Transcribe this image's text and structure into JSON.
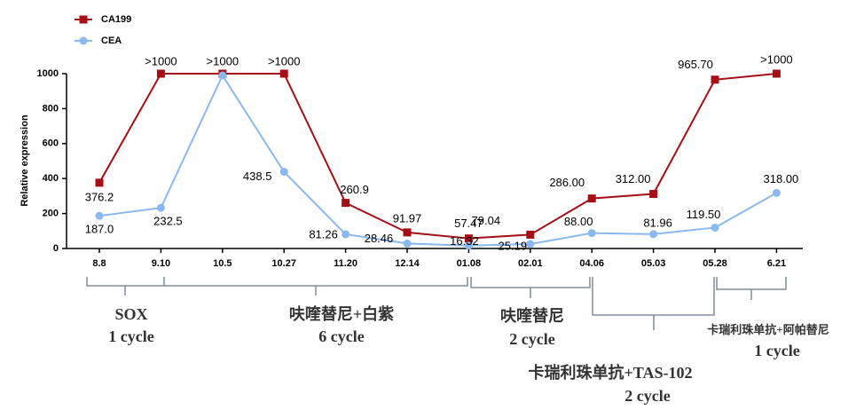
{
  "chart_data": {
    "type": "line",
    "y_label": "Relative expression",
    "categories": [
      "8.8",
      "9.10",
      "10.5",
      "10.27",
      "11.20",
      "12.14",
      "01.08",
      "02.01",
      "04.06",
      "05.03",
      "05.28",
      "6.21"
    ],
    "series": [
      {
        "name": "CA199",
        "color": "#a50f15",
        "marker": "square",
        "values": [
          376.2,
          1000,
          1000,
          1000,
          260.9,
          91.97,
          57.47,
          79.04,
          286,
          312,
          965.7,
          1000
        ],
        "value_labels": [
          "376.2",
          ">1000",
          ">1000",
          ">1000",
          "260.9",
          "91.97",
          "57.47",
          "79.04",
          "286.00",
          "312.00",
          "965.70",
          ">1000"
        ]
      },
      {
        "name": "CEA",
        "color": "#8ab8f0",
        "marker": "circle",
        "values": [
          187,
          232.5,
          990,
          438.5,
          81.26,
          28.46,
          16.32,
          25.19,
          88,
          81.96,
          119.5,
          318
        ],
        "value_labels": [
          "187.0",
          "232.5",
          null,
          "438.5",
          "81.26",
          "28.46",
          "16.32",
          "25.19",
          "88.00",
          "81.96",
          "119.50",
          "318.00"
        ]
      }
    ],
    "ylim": [
      0,
      1000
    ],
    "yticks": [
      0,
      200,
      400,
      600,
      800,
      1000
    ],
    "grid": false,
    "legend": "top-left",
    "annotations": [
      {
        "regimen": "SOX",
        "cycles": "1 cycle"
      },
      {
        "regimen": "呋喹替尼+白紫",
        "cycles": "6 cycle"
      },
      {
        "regimen": "呋喹替尼",
        "cycles": "2 cycle"
      },
      {
        "regimen": "卡瑞利珠单抗+TAS-102",
        "cycles": "2 cycle"
      },
      {
        "regimen": "卡瑞利珠单抗+阿帕替尼",
        "cycles": "1 cycle"
      }
    ]
  }
}
